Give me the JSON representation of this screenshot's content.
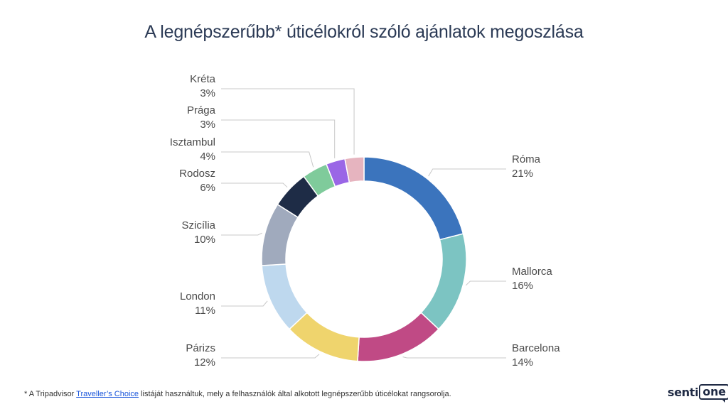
{
  "title": "A legnépszerűbb* úticélokról szóló ajánlatok megoszlása",
  "footnote": {
    "prefix": "* A Tripadvisor ",
    "link": "Traveller’s Choice",
    "suffix": " listáját használtuk, mely a felhasználók által alkotott legnépszerűbb úticélokat rangsorolja."
  },
  "logo": {
    "part1": "senti",
    "part2": "one"
  },
  "chart_data": {
    "type": "pie",
    "donut": true,
    "title": "A legnépszerűbb* úticélokról szóló ajánlatok megoszlása",
    "unit": "%",
    "slices": [
      {
        "label": "Róma",
        "value": 21,
        "display": "21%",
        "color": "#3b74bd"
      },
      {
        "label": "Mallorca",
        "value": 16,
        "display": "16%",
        "color": "#7cc4c2"
      },
      {
        "label": "Barcelona",
        "value": 14,
        "display": "14%",
        "color": "#c04a85"
      },
      {
        "label": "Párizs",
        "value": 12,
        "display": "12%",
        "color": "#efd46d"
      },
      {
        "label": "London",
        "value": 11,
        "display": "11%",
        "color": "#bed8ee"
      },
      {
        "label": "Szicília",
        "value": 10,
        "display": "10%",
        "color": "#a0aabd"
      },
      {
        "label": "Rodosz",
        "value": 6,
        "display": "6%",
        "color": "#1e2c46"
      },
      {
        "label": "Isztambul",
        "value": 4,
        "display": "4%",
        "color": "#7fcb9b"
      },
      {
        "label": "Prága",
        "value": 3,
        "display": "3%",
        "color": "#9a66e6"
      },
      {
        "label": "Kréta",
        "value": 3,
        "display": "3%",
        "color": "#e6b4bf"
      }
    ]
  }
}
